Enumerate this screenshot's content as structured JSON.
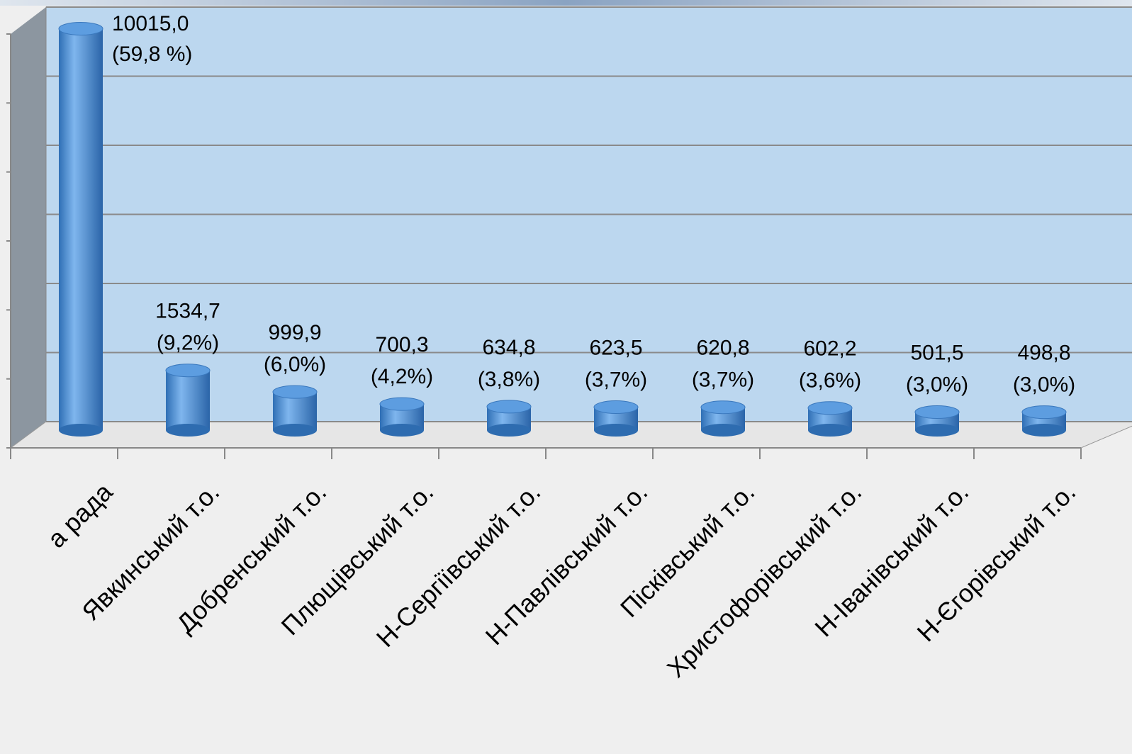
{
  "chart_data": {
    "type": "bar",
    "categories": [
      "а рада",
      "Явкинський т.о.",
      "Добренський т.о.",
      "Плющівський т.о.",
      "Н-Сергіївський т.о.",
      "Н-Павлівський т.о.",
      "Пісківський т.о.",
      "Христофорівський т.о.",
      "Н-Іванівський т.о.",
      "Н-Єгорівський т.о."
    ],
    "values": [
      10015,
      1534.7,
      999.9,
      700.3,
      634.8,
      623.5,
      620.8,
      602.2,
      501.5,
      498.8
    ],
    "value_labels": [
      "10015,0",
      "1534,7",
      "999,9",
      "700,3",
      "634,8",
      "623,5",
      "620,8",
      "602,2",
      "501,5",
      "498,8"
    ],
    "shares": [
      59.8,
      9.2,
      6.0,
      4.2,
      3.8,
      3.7,
      3.7,
      3.6,
      3.0,
      3.0
    ],
    "share_labels": [
      "(59,8 %)",
      "(9,2%)",
      "(6,0%)",
      "(4,2%)",
      "(3,8%)",
      "(3,7%)",
      "(3,7%)",
      "(3,6%)",
      "(3,0%)",
      "(3,0%)"
    ],
    "color": "#4a8fd6",
    "ylim": [
      0,
      10200
    ],
    "yticks": [
      0,
      1700,
      3400,
      5100,
      6800,
      8500,
      10200
    ],
    "grid": true
  }
}
